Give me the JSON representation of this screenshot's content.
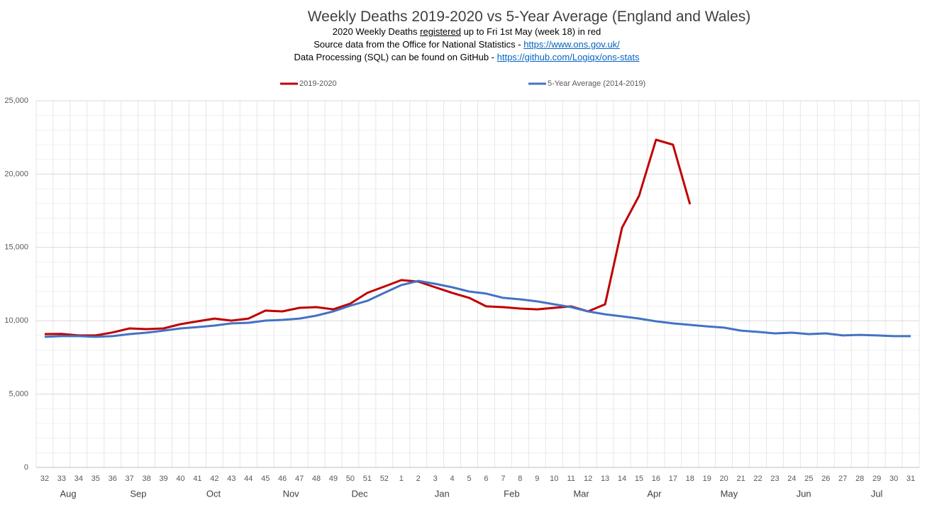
{
  "chart_data": {
    "type": "line",
    "title": "Weekly Deaths 2019-2020  vs 5-Year Average (England and Wales)",
    "subtitle_lines": [
      [
        "2020  Weekly Deaths ",
        "registered",
        " up to Fri 1st May (week 18) in red"
      ],
      [
        "Source data from the Office for National Statistics - ",
        "https://www.ons.gov.uk/"
      ],
      [
        "Data Processing (SQL) can be found on GitHub - ",
        "https://github.com/Logiqx/ons-stats"
      ]
    ],
    "categories": [
      "32",
      "33",
      "34",
      "35",
      "36",
      "37",
      "38",
      "39",
      "40",
      "41",
      "42",
      "43",
      "44",
      "45",
      "46",
      "47",
      "48",
      "49",
      "50",
      "51",
      "52",
      "1",
      "2",
      "3",
      "4",
      "5",
      "6",
      "7",
      "8",
      "9",
      "10",
      "11",
      "12",
      "13",
      "14",
      "15",
      "16",
      "17",
      "18",
      "19",
      "20",
      "21",
      "22",
      "23",
      "24",
      "25",
      "26",
      "27",
      "28",
      "29",
      "30",
      "31"
    ],
    "months": [
      "Aug",
      "Sep",
      "Oct",
      "Nov",
      "Dec",
      "Jan",
      "Feb",
      "Mar",
      "Apr",
      "May",
      "Jun",
      "Jul"
    ],
    "series": [
      {
        "name": "2019-2020",
        "color": "#c00000",
        "values": [
          9090,
          9100,
          9000,
          9000,
          9200,
          9480,
          9430,
          9480,
          9770,
          9960,
          10150,
          10010,
          10150,
          10690,
          10640,
          10880,
          10930,
          10780,
          11170,
          11900,
          12330,
          12770,
          12670,
          12280,
          11900,
          11560,
          10980,
          10930,
          10830,
          10780,
          10880,
          10980,
          10640,
          11120,
          16340,
          18520,
          22340,
          22000,
          17940,
          null,
          null,
          null,
          null,
          null,
          null,
          null,
          null,
          null,
          null,
          null,
          null,
          null
        ]
      },
      {
        "name": "5-Year Average (2014-2019)",
        "color": "#4472c4",
        "values": [
          8900,
          8950,
          8950,
          8900,
          8950,
          9090,
          9190,
          9330,
          9480,
          9570,
          9670,
          9820,
          9860,
          10010,
          10060,
          10150,
          10350,
          10640,
          11030,
          11360,
          11900,
          12430,
          12720,
          12520,
          12280,
          11990,
          11850,
          11560,
          11460,
          11320,
          11120,
          10930,
          10640,
          10440,
          10300,
          10150,
          9960,
          9820,
          9720,
          9620,
          9530,
          9330,
          9240,
          9140,
          9190,
          9090,
          9140,
          9000,
          9040,
          9000,
          8950,
          8950
        ]
      }
    ],
    "ylim": [
      0,
      25000
    ],
    "yticks": [
      0,
      {
        "value": 5000,
        "label": "5,000"
      },
      {
        "value": 10000,
        "label": "10,000"
      },
      {
        "value": 15000,
        "label": "15,000"
      },
      {
        "value": 20000,
        "label": "20,000"
      },
      {
        "value": 25000,
        "label": "25,000"
      }
    ],
    "grid": true
  }
}
